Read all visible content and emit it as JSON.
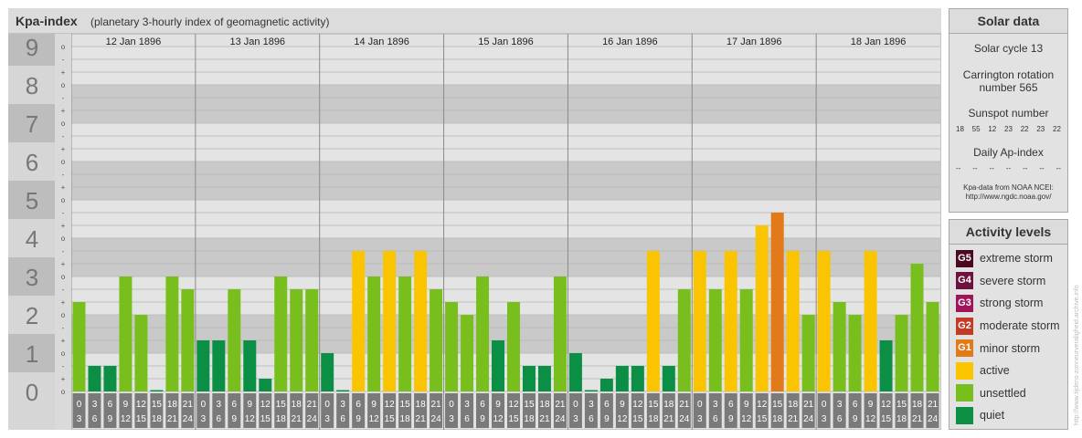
{
  "chart_data": {
    "type": "bar",
    "title": "Kpa-index",
    "subtitle": "(planetary 3-hourly index of geomagnetic activity)",
    "ylim": [
      0,
      9
    ],
    "y_major_ticks": [
      "0",
      "1",
      "2",
      "3",
      "4",
      "5",
      "6",
      "7",
      "8",
      "9"
    ],
    "y_minor_ticks": [
      "o",
      "+",
      "-"
    ],
    "days": [
      "12 Jan 1896",
      "13 Jan 1896",
      "14 Jan 1896",
      "15 Jan 1896",
      "16 Jan 1896",
      "17 Jan 1896",
      "18 Jan 1896"
    ],
    "interval_start": [
      "0",
      "3",
      "6",
      "9",
      "12",
      "15",
      "18",
      "21"
    ],
    "interval_end": [
      "3",
      "6",
      "9",
      "12",
      "15",
      "18",
      "21",
      "24"
    ],
    "values": [
      2.333,
      0.667,
      0.667,
      3.0,
      2.0,
      0.0,
      3.0,
      2.667,
      1.333,
      1.333,
      2.667,
      1.333,
      0.333,
      3.0,
      2.667,
      2.667,
      1.0,
      0.0,
      3.667,
      3.0,
      3.667,
      3.0,
      3.667,
      2.667,
      2.333,
      2.0,
      3.0,
      1.333,
      2.333,
      0.667,
      0.667,
      3.0,
      1.0,
      0.0,
      0.333,
      0.667,
      0.667,
      3.667,
      0.667,
      2.667,
      3.667,
      2.667,
      3.667,
      2.667,
      4.333,
      4.667,
      3.667,
      2.0,
      3.667,
      2.333,
      2.0,
      3.667,
      1.333,
      2.0,
      3.333,
      2.333
    ],
    "level_colors": {
      "quiet": "#0a8f45",
      "unsettled": "#78bf1e",
      "active": "#fac500",
      "minor_storm": "#e27a1a",
      "moderate_storm": "#c23b22",
      "strong_storm": "#a0145a",
      "severe_storm": "#6e1240",
      "extreme_storm": "#4a0a24"
    }
  },
  "solar": {
    "title": "Solar data",
    "cycle": "Solar cycle 13",
    "carrington_line1": "Carrington rotation",
    "carrington_line2": "number 565",
    "sunspot_title": "Sunspot number",
    "sunspot_values": [
      "18",
      "55",
      "12",
      "23",
      "22",
      "23",
      "22"
    ],
    "ap_title": "Daily Ap-index",
    "ap_values": [
      "--",
      "--",
      "--",
      "--",
      "--",
      "--",
      "--"
    ],
    "source_line1": "Kpa-data from NOAA NCEI:",
    "source_line2": "http://www.ngdc.noaa.gov/"
  },
  "levels": {
    "title": "Activity levels",
    "items": [
      {
        "code": "G5",
        "label": "extreme storm",
        "color": "#4a0a24"
      },
      {
        "code": "G4",
        "label": "severe storm",
        "color": "#6e1240"
      },
      {
        "code": "G3",
        "label": "strong storm",
        "color": "#a0145a"
      },
      {
        "code": "G2",
        "label": "moderate storm",
        "color": "#c23b22"
      },
      {
        "code": "G1",
        "label": "minor storm",
        "color": "#e27a1a"
      },
      {
        "code": "",
        "label": "active",
        "color": "#fac500"
      },
      {
        "code": "",
        "label": "unsettled",
        "color": "#78bf1e"
      },
      {
        "code": "",
        "label": "quiet",
        "color": "#0a8f45"
      }
    ]
  },
  "credit": "http://www.tijdens-zonneurveraligheid.archive.info"
}
